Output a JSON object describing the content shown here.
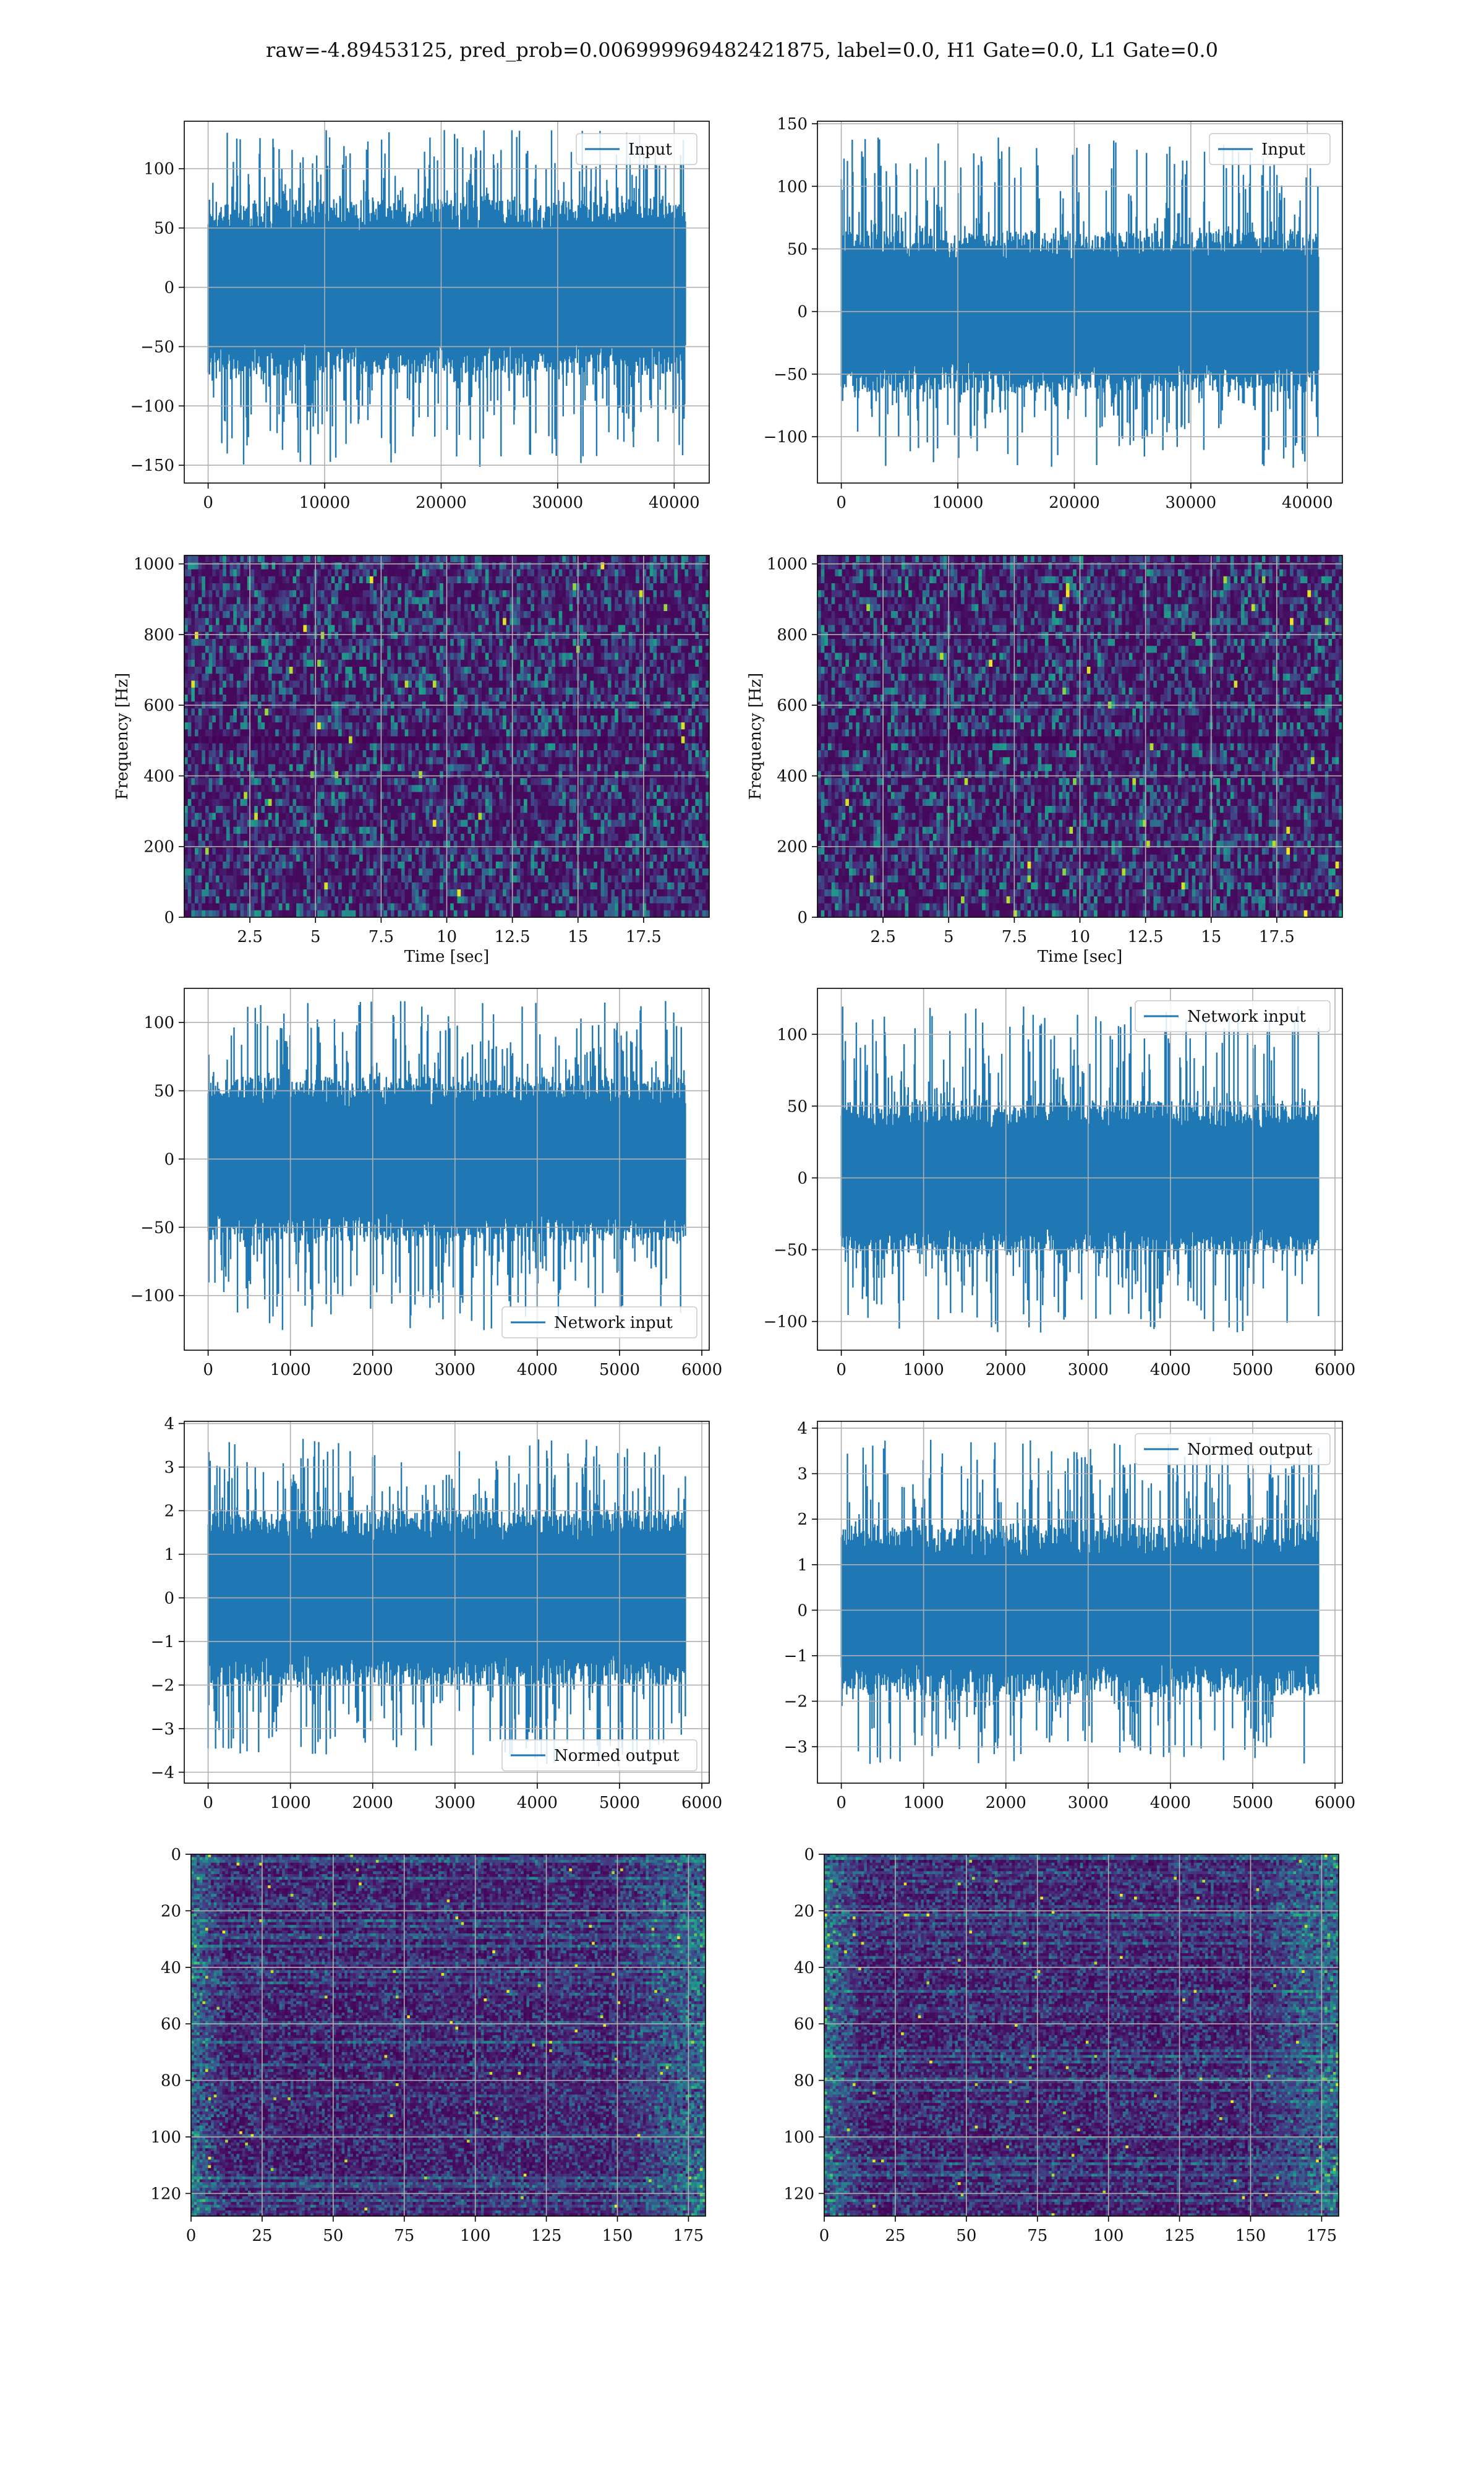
{
  "figure": {
    "title": "raw=-4.89453125, pred_prob=0.006999969482421875, label=0.0, H1 Gate=0.0, L1 Gate=0.0"
  },
  "colors": {
    "series": "#1f77b4",
    "grid": "#b0b0b0",
    "axis": "#000000"
  },
  "chart_data": [
    {
      "id": "p1",
      "type": "line",
      "legend": "Input",
      "legend_loc": "upper right",
      "xlim": [
        -2048,
        43008
      ],
      "ylim": [
        -165,
        140
      ],
      "xticks": [
        0,
        10000,
        20000,
        30000,
        40000
      ],
      "yticks": [
        -150,
        -100,
        -50,
        0,
        50,
        100
      ],
      "n": 40960,
      "envelope": {
        "core": 55,
        "peak_max": 133,
        "peak_min": -153
      },
      "grid": true
    },
    {
      "id": "p2",
      "type": "line",
      "legend": "Input",
      "legend_loc": "upper right",
      "xlim": [
        -2048,
        43008
      ],
      "ylim": [
        -137,
        152
      ],
      "xticks": [
        0,
        10000,
        20000,
        30000,
        40000
      ],
      "yticks": [
        -100,
        -50,
        0,
        50,
        100,
        150
      ],
      "n": 40960,
      "envelope": {
        "core": 48,
        "peak_max": 139,
        "peak_min": -125
      },
      "grid": true
    },
    {
      "id": "p3",
      "type": "heatmap",
      "colormap": "viridis",
      "xlabel": "Time [sec]",
      "ylabel": "Frequency [Hz]",
      "xlim": [
        0,
        20
      ],
      "ylim": [
        0,
        1024
      ],
      "xticks": [
        2.5,
        5.0,
        7.5,
        10.0,
        12.5,
        15.0,
        17.5
      ],
      "yticks": [
        0,
        200,
        400,
        600,
        800,
        1000
      ],
      "dark_band_hz": [
        490,
        520
      ],
      "grid": true
    },
    {
      "id": "p4",
      "type": "heatmap",
      "colormap": "viridis",
      "xlabel": "Time [sec]",
      "ylabel": "Frequency [Hz]",
      "xlim": [
        0,
        20
      ],
      "ylim": [
        0,
        1024
      ],
      "xticks": [
        2.5,
        5.0,
        7.5,
        10.0,
        12.5,
        15.0,
        17.5
      ],
      "yticks": [
        0,
        200,
        400,
        600,
        800,
        1000
      ],
      "dark_band_hz": [
        490,
        520
      ],
      "grid": true
    },
    {
      "id": "p5",
      "type": "line",
      "legend": "Network input",
      "legend_loc": "lower right",
      "xlim": [
        -290,
        6090
      ],
      "ylim": [
        -140,
        125
      ],
      "xticks": [
        0,
        1000,
        2000,
        3000,
        4000,
        5000,
        6000
      ],
      "yticks": [
        -100,
        -50,
        0,
        50,
        100
      ],
      "n": 5800,
      "envelope": {
        "core": 45,
        "peak_max": 116,
        "peak_min": -126
      },
      "grid": true
    },
    {
      "id": "p6",
      "type": "line",
      "legend": "Network input",
      "legend_loc": "upper right",
      "xlim": [
        -290,
        6090
      ],
      "ylim": [
        -120,
        132
      ],
      "xticks": [
        0,
        1000,
        2000,
        3000,
        4000,
        5000,
        6000
      ],
      "yticks": [
        -100,
        -50,
        0,
        50,
        100
      ],
      "n": 5800,
      "envelope": {
        "core": 40,
        "peak_max": 121,
        "peak_min": -108
      },
      "grid": true
    },
    {
      "id": "p7",
      "type": "line",
      "legend": "Normed output",
      "legend_loc": "lower right",
      "xlim": [
        -290,
        6090
      ],
      "ylim": [
        -4.25,
        4.05
      ],
      "xticks": [
        0,
        1000,
        2000,
        3000,
        4000,
        5000,
        6000
      ],
      "yticks": [
        -4,
        -3,
        -2,
        -1,
        0,
        1,
        2,
        3,
        4
      ],
      "n": 5800,
      "envelope": {
        "core": 1.5,
        "peak_max": 3.65,
        "peak_min": -3.9
      },
      "grid": true
    },
    {
      "id": "p8",
      "type": "line",
      "legend": "Normed output",
      "legend_loc": "upper right",
      "xlim": [
        -290,
        6090
      ],
      "ylim": [
        -3.8,
        4.15
      ],
      "xticks": [
        0,
        1000,
        2000,
        3000,
        4000,
        5000,
        6000
      ],
      "yticks": [
        -3,
        -2,
        -1,
        0,
        1,
        2,
        3,
        4
      ],
      "n": 5800,
      "envelope": {
        "core": 1.4,
        "peak_max": 3.8,
        "peak_min": -3.4
      },
      "grid": true
    },
    {
      "id": "p9",
      "type": "heatmap",
      "colormap": "viridis",
      "xlim": [
        0,
        181
      ],
      "ylim": [
        128,
        0
      ],
      "xticks": [
        0,
        25,
        50,
        75,
        100,
        125,
        150,
        175
      ],
      "yticks": [
        0,
        20,
        40,
        60,
        80,
        100,
        120
      ],
      "grid": true
    },
    {
      "id": "p10",
      "type": "heatmap",
      "colormap": "viridis",
      "xlim": [
        0,
        181
      ],
      "ylim": [
        128,
        0
      ],
      "xticks": [
        0,
        25,
        50,
        75,
        100,
        125,
        150,
        175
      ],
      "yticks": [
        0,
        20,
        40,
        60,
        80,
        100,
        120
      ],
      "grid": true
    }
  ]
}
